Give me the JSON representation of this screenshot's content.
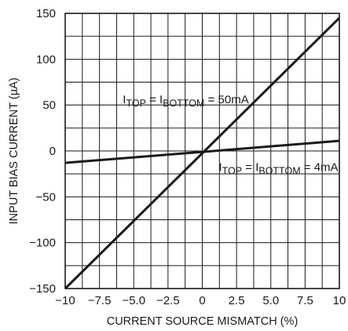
{
  "chart_data": {
    "type": "line",
    "title": "",
    "xlabel": "CURRENT SOURCE MISMATCH (%)",
    "ylabel": "INPUT BIAS CURRENT (µA)",
    "xlim": [
      -10,
      10
    ],
    "ylim": [
      -150,
      150
    ],
    "x_ticks": [
      -10,
      -7.5,
      -5,
      -2.5,
      0,
      2.5,
      5,
      7.5,
      10
    ],
    "x_tick_labels": [
      "−10",
      "−7.5",
      "−5.0",
      "−2.5",
      "0",
      "2.5",
      "5.0",
      "7.5",
      "10"
    ],
    "y_ticks": [
      -150,
      -100,
      -50,
      0,
      50,
      100,
      150
    ],
    "y_tick_labels": [
      "−150",
      "−100",
      "−50",
      "0",
      "50",
      "100",
      "150"
    ],
    "x_minor_step": 1.25,
    "y_minor_step": 25,
    "grid": true,
    "series": [
      {
        "label": {
          "main1": "I",
          "sub1": "TOP",
          "mid": " = I",
          "sub2": "BOTTOM",
          "tail": " = 50mA"
        },
        "x": [
          -10,
          10
        ],
        "y": [
          -150,
          145
        ],
        "label_anchor": [
          -5.8,
          52
        ]
      },
      {
        "label": {
          "main1": "I",
          "sub1": "TOP",
          "mid": " = I",
          "sub2": "BOTTOM",
          "tail": " = 4mA"
        },
        "x": [
          -10,
          10
        ],
        "y": [
          -13,
          11
        ],
        "label_anchor": [
          1.2,
          -22
        ]
      }
    ]
  }
}
